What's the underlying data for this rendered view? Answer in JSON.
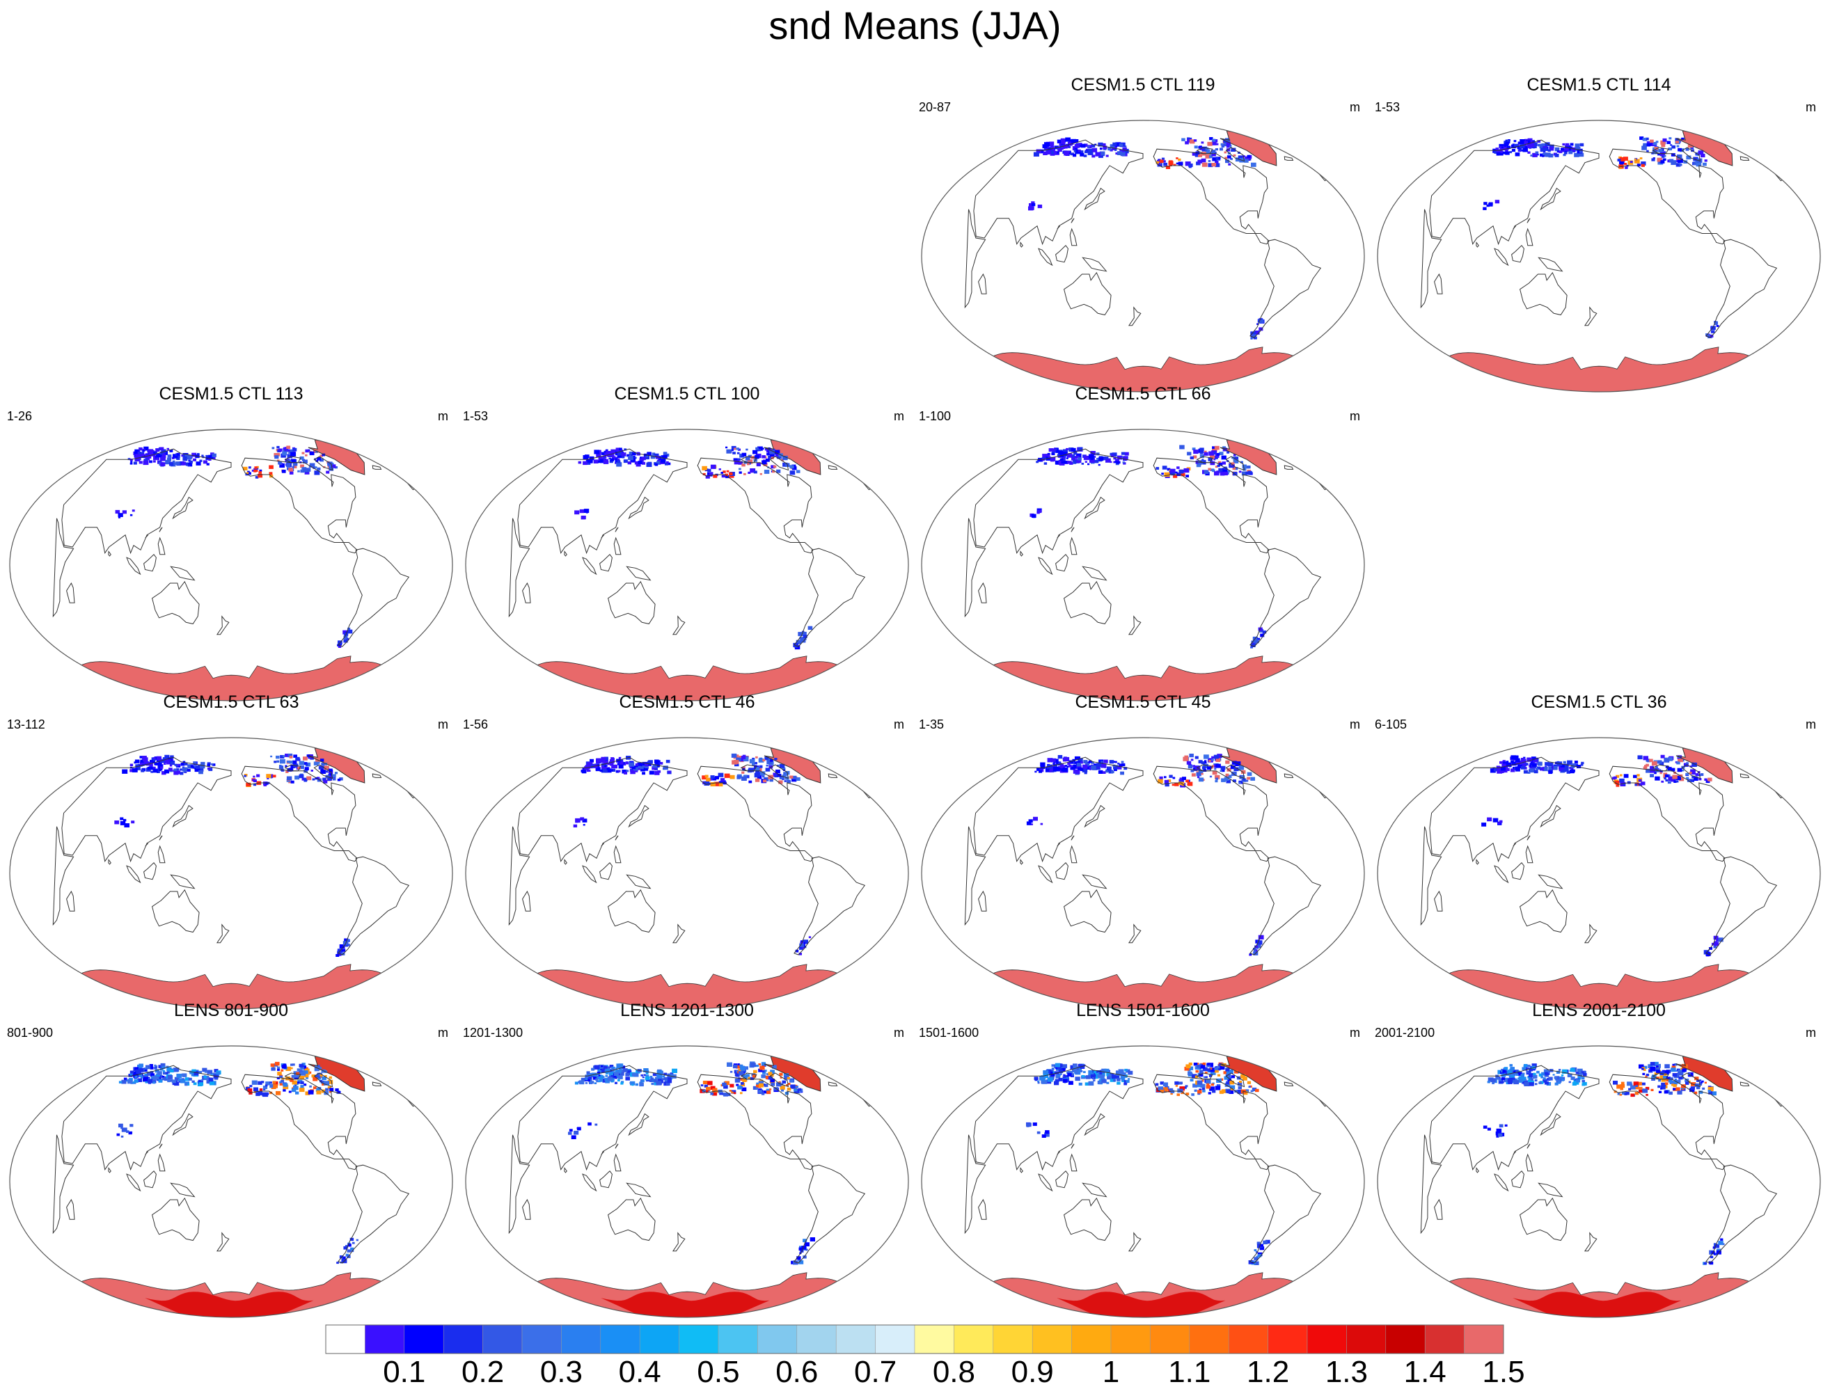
{
  "main_title": "snd Means (JJA)",
  "colors": {
    "land_outline": "#333333",
    "frame": "#555555",
    "antarctica_ctl": "#e8696a",
    "antarctica_lens_core": "#dc1010"
  },
  "panels": [
    {
      "title": "CESM1.5 CTL 119",
      "left": "20-87",
      "right": "m",
      "type": "ctl"
    },
    {
      "title": "CESM1.5 CTL 114",
      "left": "1-53",
      "right": "m",
      "type": "ctl"
    },
    {
      "title": "CESM1.5 CTL 113",
      "left": "1-26",
      "right": "m",
      "type": "ctl"
    },
    {
      "title": "CESM1.5 CTL 100",
      "left": "1-53",
      "right": "m",
      "type": "ctl"
    },
    {
      "title": "CESM1.5 CTL 66",
      "left": "1-100",
      "right": "m",
      "type": "ctl"
    },
    {
      "title": "CESM1.5 CTL 63",
      "left": "13-112",
      "right": "m",
      "type": "ctl"
    },
    {
      "title": "CESM1.5 CTL 46",
      "left": "1-56",
      "right": "m",
      "type": "ctl"
    },
    {
      "title": "CESM1.5 CTL 45",
      "left": "1-35",
      "right": "m",
      "type": "ctl"
    },
    {
      "title": "CESM1.5 CTL 36",
      "left": "6-105",
      "right": "m",
      "type": "ctl"
    },
    {
      "title": "LENS 801-900",
      "left": "801-900",
      "right": "m",
      "type": "lens"
    },
    {
      "title": "LENS 1201-1300",
      "left": "1201-1300",
      "right": "m",
      "type": "lens"
    },
    {
      "title": "LENS 1501-1600",
      "left": "1501-1600",
      "right": "m",
      "type": "lens"
    },
    {
      "title": "LENS 2001-2100",
      "left": "2001-2100",
      "right": "m",
      "type": "lens"
    }
  ],
  "chart_data": {
    "type": "heatmap",
    "title": "snd Means (JJA)",
    "variable": "snd",
    "units": "m",
    "projection": "Winkel tripel / Robinson-like global map, Pacific-centered",
    "colorbar": {
      "levels": [
        0.05,
        0.1,
        0.15,
        0.2,
        0.25,
        0.3,
        0.35,
        0.4,
        0.45,
        0.5,
        0.55,
        0.6,
        0.65,
        0.7,
        0.75,
        0.8,
        0.85,
        0.9,
        0.95,
        1.0,
        1.05,
        1.1,
        1.15,
        1.2,
        1.25,
        1.3,
        1.35,
        1.4,
        1.45,
        1.5
      ],
      "tick_labels": [
        "0.1",
        "0.2",
        "0.3",
        "0.4",
        "0.5",
        "0.6",
        "0.7",
        "0.8",
        "0.9",
        "1",
        "1.1",
        "1.2",
        "1.3",
        "1.4",
        "1.5"
      ],
      "tick_values": [
        0.1,
        0.2,
        0.3,
        0.4,
        0.5,
        0.6,
        0.7,
        0.8,
        0.9,
        1.0,
        1.1,
        1.2,
        1.3,
        1.4,
        1.5
      ],
      "colors": [
        "#ffffff",
        "#3a10ff",
        "#0000ff",
        "#1a2dee",
        "#3358e6",
        "#3b6fe9",
        "#2a7ff0",
        "#1a8ff5",
        "#0da5f5",
        "#10bcf5",
        "#4cc4f2",
        "#80c8ee",
        "#a2d4ee",
        "#bce0f2",
        "#d8eefa",
        "#fffaa0",
        "#ffea5a",
        "#ffd535",
        "#ffc020",
        "#ffaa10",
        "#ff9a10",
        "#ff8a10",
        "#ff7010",
        "#ff5014",
        "#ff2a14",
        "#f00a0a",
        "#dc0a0a",
        "#c80000",
        "#d83030",
        "#e8696a"
      ]
    },
    "regions_ctl": {
      "Antarctica": 1.5,
      "Greenland": 1.5,
      "Siberia_high_latitudes": 0.1,
      "Canadian_arctic": 0.1,
      "Tibet": 0.1,
      "Andes_south": 0.2
    },
    "regions_lens": {
      "Antarctica_interior": 1.4,
      "Antarctica_coast": 1.5,
      "Greenland": 1.4,
      "Siberia_high_latitudes": 0.2,
      "Canadian_arctic": 0.3,
      "Tibet": 0.1,
      "Andes_south": 0.3
    }
  }
}
